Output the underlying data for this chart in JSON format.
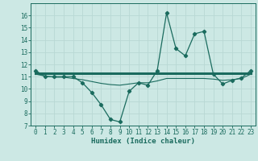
{
  "title": "",
  "xlabel": "Humidex (Indice chaleur)",
  "ylabel": "",
  "bg_color": "#cce8e4",
  "grid_color": "#b8d8d4",
  "line_color": "#1a6b5e",
  "x_values": [
    0,
    1,
    2,
    3,
    4,
    5,
    6,
    7,
    8,
    9,
    10,
    11,
    12,
    13,
    14,
    15,
    16,
    17,
    18,
    19,
    20,
    21,
    22,
    23
  ],
  "main_line": [
    11.5,
    11.0,
    11.0,
    11.0,
    11.0,
    10.5,
    9.7,
    8.7,
    7.5,
    7.3,
    9.8,
    10.5,
    10.3,
    11.5,
    16.2,
    13.3,
    12.7,
    14.5,
    14.7,
    11.2,
    10.4,
    10.7,
    10.9,
    11.5
  ],
  "flat_line": [
    11.3,
    11.3,
    11.3,
    11.3,
    11.3,
    11.3,
    11.3,
    11.3,
    11.3,
    11.3,
    11.3,
    11.3,
    11.3,
    11.3,
    11.3,
    11.3,
    11.3,
    11.3,
    11.3,
    11.3,
    11.3,
    11.3,
    11.3,
    11.3
  ],
  "smooth_line": [
    11.2,
    11.05,
    10.95,
    10.95,
    10.85,
    10.75,
    10.6,
    10.45,
    10.35,
    10.3,
    10.4,
    10.5,
    10.5,
    10.65,
    10.85,
    10.85,
    10.85,
    10.85,
    10.85,
    10.8,
    10.7,
    10.75,
    10.85,
    11.2
  ],
  "ylim": [
    7,
    17
  ],
  "xlim": [
    -0.5,
    23.5
  ],
  "yticks": [
    7,
    8,
    9,
    10,
    11,
    12,
    13,
    14,
    15,
    16
  ],
  "xticks": [
    0,
    1,
    2,
    3,
    4,
    5,
    6,
    7,
    8,
    9,
    10,
    11,
    12,
    13,
    14,
    15,
    16,
    17,
    18,
    19,
    20,
    21,
    22,
    23
  ],
  "marker": "D",
  "markersize": 2.2,
  "linewidth": 0.9,
  "flat_linewidth": 2.2,
  "smooth_linewidth": 0.8
}
